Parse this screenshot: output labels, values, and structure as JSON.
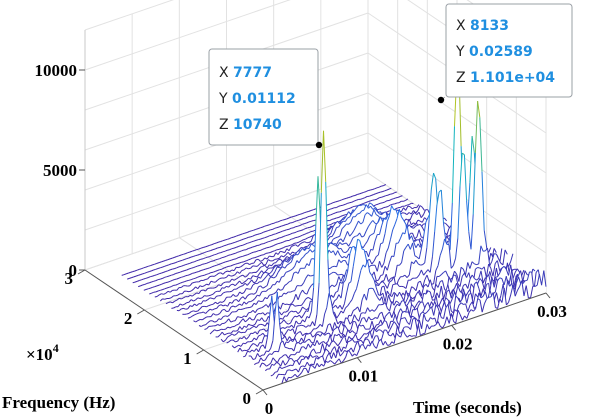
{
  "chart_data": {
    "type": "waterfall-3d",
    "xlabel": "Time (seconds)",
    "ylabel": "Frequency (Hz)",
    "zlabel": "",
    "x_ticks": [
      "0",
      "0.01",
      "0.02",
      "0.03"
    ],
    "y_ticks": [
      "0",
      "1",
      "2",
      "3"
    ],
    "y_exponent": "×10",
    "y_exponent_power": "4",
    "z_ticks": [
      "0",
      "5000",
      "10000"
    ],
    "xlim": [
      0,
      0.03
    ],
    "ylim": [
      0,
      30000
    ],
    "zlim": [
      0,
      12000
    ],
    "grid": true,
    "colormap": "parula",
    "series_count": 30,
    "data_tips": [
      {
        "label_x": "X",
        "x": "7777",
        "label_y": "Y",
        "y": "0.01112",
        "label_z": "Z",
        "z": "10740",
        "z_value": 10740
      },
      {
        "label_x": "X",
        "x": "8133",
        "label_y": "Y",
        "y": "0.02589",
        "label_z": "Z",
        "z": "1.101e+04",
        "z_value": 11010
      }
    ]
  }
}
